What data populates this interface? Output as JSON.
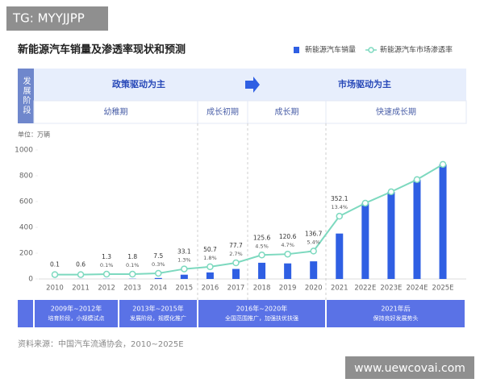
{
  "watermark": "TG: MYYJJPP",
  "footer_watermark": "www.uewcovai.com",
  "source": "资料来源：中国汽车流通协会，2010~2025E",
  "stage_table": {
    "row_label": "发展阶段",
    "drivers": [
      "政策驱动为主",
      "市场驱动为主"
    ],
    "phases": [
      "幼稚期",
      "成长初期",
      "成长期",
      "快速成长期"
    ]
  },
  "periods": [
    {
      "years": "2009年~2012年",
      "desc": "培育阶段，小规模试点"
    },
    {
      "years": "2013年~2015年",
      "desc": "发展阶段，规模化推广"
    },
    {
      "years": "2016年~2020年",
      "desc": "全国范围推广，加强扶优扶强"
    },
    {
      "years": "2021年后",
      "desc": "保持良好发展势头"
    }
  ],
  "chart_data": {
    "type": "bar",
    "title": "新能源汽车销量及渗透率现状和预测",
    "unit_label": "单位：万辆",
    "categories": [
      "2010",
      "2011",
      "2012",
      "2013",
      "2014",
      "2015",
      "2016",
      "2017",
      "2018",
      "2019",
      "2020",
      "2021",
      "2022E",
      "2023E",
      "2024E",
      "2025E"
    ],
    "series": [
      {
        "name": "新能源汽车销量",
        "color": "#2f5fe3",
        "values": [
          0.1,
          0.6,
          1.3,
          1.8,
          7.5,
          33.1,
          50.7,
          77.7,
          125.6,
          120.6,
          136.7,
          352.1,
          587,
          675,
          769,
          888
        ],
        "value_labels": [
          "0.1",
          "0.6",
          "1.3",
          "1.8",
          "7.5",
          "33.1",
          "50.7",
          "77.7",
          "125.6",
          "120.6",
          "136.7",
          "352.1",
          null,
          null,
          null,
          null
        ]
      },
      {
        "name": "新能源汽车市场渗透率",
        "type": "line",
        "axis": "y2",
        "color": "#7dd9bf",
        "values": [
          0.0,
          0.0,
          0.1,
          0.1,
          0.3,
          1.3,
          1.8,
          2.7,
          4.5,
          4.7,
          5.4,
          13.4,
          16.4,
          19.0,
          21.8,
          25.3
        ],
        "value_labels": [
          null,
          null,
          "0.1%",
          "0.1%",
          "0.3%",
          "1.3%",
          "1.8%",
          "2.7%",
          "4.5%",
          "4.7%",
          "5.4%",
          "13.4%",
          null,
          null,
          null,
          null
        ]
      }
    ],
    "ylim": [
      0,
      1000
    ],
    "yticks": [
      0,
      200,
      400,
      600,
      800,
      1000
    ],
    "y2lim": [
      -1,
      28.6
    ],
    "grid": false,
    "legend": "top-right"
  }
}
